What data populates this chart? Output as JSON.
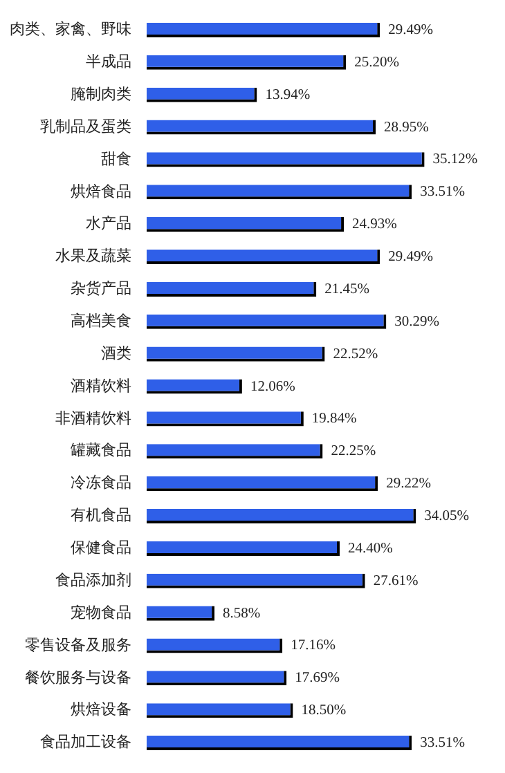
{
  "chart_data": {
    "type": "bar",
    "orientation": "horizontal",
    "categories": [
      "肉类、家禽、野味",
      "半成品",
      "腌制肉类",
      "乳制品及蛋类",
      "甜食",
      "烘焙食品",
      "水产品",
      "水果及蔬菜",
      "杂货产品",
      "高档美食",
      "酒类",
      "酒精饮料",
      "非酒精饮料",
      "罐藏食品",
      "冷冻食品",
      "有机食品",
      "保健食品",
      "食品添加剂",
      "宠物食品",
      "零售设备及服务",
      "餐饮服务与设备",
      "烘焙设备",
      "食品加工设备"
    ],
    "values": [
      29.49,
      25.2,
      13.94,
      28.95,
      35.12,
      33.51,
      24.93,
      29.49,
      21.45,
      30.29,
      22.52,
      12.06,
      19.84,
      22.25,
      29.22,
      34.05,
      24.4,
      27.61,
      8.58,
      17.16,
      17.69,
      18.5,
      33.51
    ],
    "value_labels": [
      "29.49%",
      "25.20%",
      "13.94%",
      "28.95%",
      "35.12%",
      "33.51%",
      "24.93%",
      "29.49%",
      "21.45%",
      "30.29%",
      "22.52%",
      "12.06%",
      "19.84%",
      "22.25%",
      "29.22%",
      "34.05%",
      "24.40%",
      "27.61%",
      "8.58%",
      "17.16%",
      "17.69%",
      "18.50%",
      "33.51%"
    ],
    "color": "#2f5fe8",
    "tick_labels": "y"
  }
}
